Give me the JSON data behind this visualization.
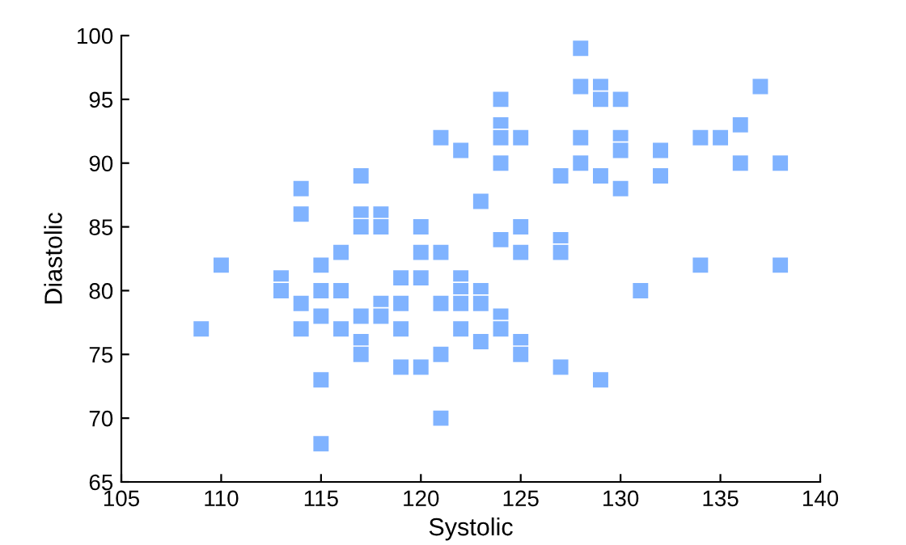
{
  "chart_data": {
    "type": "scatter",
    "xlabel": "Systolic",
    "ylabel": "Diastolic",
    "marker": "square",
    "grid": false,
    "legend": false,
    "series": [
      {
        "color": "#80b3ff",
        "x": [
          109,
          110,
          113,
          113,
          114,
          114,
          114,
          114,
          115,
          115,
          115,
          115,
          115,
          116,
          116,
          116,
          117,
          117,
          117,
          117,
          117,
          117,
          118,
          118,
          118,
          118,
          119,
          119,
          119,
          119,
          120,
          120,
          120,
          120,
          121,
          121,
          121,
          121,
          121,
          122,
          122,
          122,
          122,
          122,
          123,
          123,
          123,
          123,
          124,
          124,
          124,
          124,
          124,
          124,
          124,
          125,
          125,
          125,
          125,
          125,
          127,
          127,
          127,
          127,
          128,
          128,
          128,
          128,
          129,
          129,
          129,
          129,
          130,
          130,
          130,
          130,
          131,
          132,
          132,
          134,
          134,
          135,
          136,
          136,
          137,
          138,
          138
        ],
        "values": [
          77,
          82,
          81,
          80,
          88,
          86,
          79,
          77,
          82,
          80,
          78,
          73,
          68,
          83,
          80,
          77,
          89,
          86,
          85,
          78,
          76,
          75,
          86,
          85,
          79,
          78,
          81,
          79,
          77,
          74,
          85,
          83,
          81,
          74,
          92,
          83,
          79,
          75,
          70,
          91,
          81,
          80,
          79,
          77,
          87,
          80,
          79,
          76,
          95,
          93,
          92,
          90,
          84,
          78,
          77,
          92,
          85,
          83,
          76,
          75,
          89,
          84,
          83,
          74,
          99,
          96,
          92,
          90,
          96,
          95,
          89,
          73,
          95,
          92,
          91,
          88,
          80,
          91,
          89,
          92,
          82,
          92,
          93,
          90,
          96,
          90,
          82
        ]
      }
    ],
    "xlim": [
      105,
      140
    ],
    "xticks": [
      105,
      110,
      115,
      120,
      125,
      130,
      135,
      140
    ],
    "ylim": [
      65,
      100
    ],
    "yticks": [
      65,
      70,
      75,
      80,
      85,
      90,
      95,
      100
    ]
  }
}
